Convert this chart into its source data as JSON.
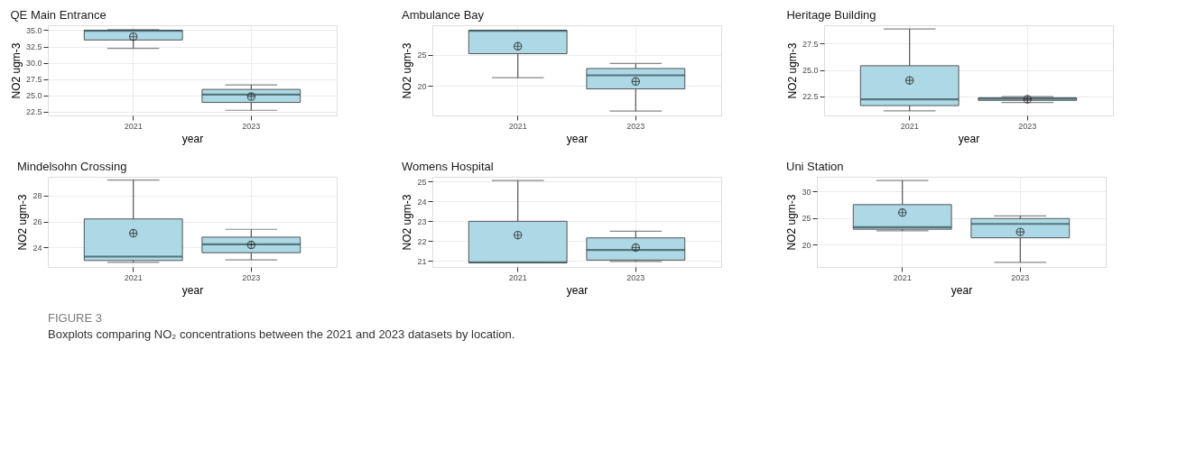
{
  "chart_data": [
    {
      "type": "box",
      "title": "QE Main Entrance",
      "xlabel": "year",
      "ylabel": "NO2 ugm-3",
      "categories": [
        "2021",
        "2023"
      ],
      "ylim": [
        21.9,
        35.76
      ],
      "yticks": [
        {
          "value": 22.5,
          "label": "22.5"
        },
        {
          "value": 25,
          "label": "25.0"
        },
        {
          "value": 27.5,
          "label": "27.5"
        },
        {
          "value": 30,
          "label": "30.0"
        },
        {
          "value": 32.5,
          "label": "32.5"
        },
        {
          "value": 35,
          "label": "35.0"
        }
      ],
      "grid": true,
      "marker": "circle",
      "series": [
        {
          "color": "#add8e6",
          "boxes": [
            {
              "low": 32.2,
              "q1": 33.5,
              "median": 34.9,
              "q3": 35.0,
              "high": 35.1,
              "mean": 34.0
            },
            {
              "low": 22.7,
              "q1": 23.9,
              "median": 25.1,
              "q3": 25.9,
              "high": 26.6,
              "mean": 24.8
            }
          ]
        }
      ]
    },
    {
      "type": "box",
      "title": "Ambulance Bay",
      "xlabel": "year",
      "ylabel": "NO2 ugm-3",
      "categories": [
        "2021",
        "2023"
      ],
      "ylim": [
        15.2,
        29.8
      ],
      "yticks": [
        20,
        25
      ],
      "grid": true,
      "marker": "circle",
      "series": [
        {
          "color": "#add8e6",
          "boxes": [
            {
              "low": 21.3,
              "q1": 25.2,
              "median": 28.9,
              "q3": 29.0,
              "high": 29.0,
              "mean": 26.4
            },
            {
              "low": 15.9,
              "q1": 19.5,
              "median": 21.7,
              "q3": 22.8,
              "high": 23.6,
              "mean": 20.7
            }
          ]
        }
      ]
    },
    {
      "type": "box",
      "title": "Heritage Building",
      "xlabel": "year",
      "ylabel": "NO2 ugm-3",
      "categories": [
        "2021",
        "2023"
      ],
      "ylim": [
        20.66,
        29.26
      ],
      "yticks": [
        {
          "value": 22.5,
          "label": "22.5"
        },
        {
          "value": 25,
          "label": "25.0"
        },
        {
          "value": 27.5,
          "label": "27.5"
        }
      ],
      "grid": true,
      "marker": "circle",
      "series": [
        {
          "color": "#add8e6",
          "boxes": [
            {
              "low": 21.1,
              "q1": 21.6,
              "median": 22.2,
              "q3": 25.4,
              "high": 28.9,
              "mean": 24.0
            },
            {
              "low": 21.9,
              "q1": 22.1,
              "median": 22.25,
              "q3": 22.35,
              "high": 22.45,
              "mean": 22.2
            }
          ]
        }
      ]
    },
    {
      "type": "box",
      "title": "Mindelsohn Crossing",
      "xlabel": "year",
      "ylabel": "NO2 ugm-3",
      "categories": [
        "2021",
        "2023"
      ],
      "ylim": [
        22.5,
        29.45
      ],
      "yticks": [
        24,
        26,
        28
      ],
      "grid": true,
      "marker": "circle",
      "series": [
        {
          "color": "#add8e6",
          "boxes": [
            {
              "low": 22.85,
              "q1": 23.0,
              "median": 23.3,
              "q3": 26.2,
              "high": 29.2,
              "mean": 25.1
            },
            {
              "low": 23.05,
              "q1": 23.6,
              "median": 24.25,
              "q3": 24.8,
              "high": 25.4,
              "mean": 24.2
            }
          ]
        }
      ]
    },
    {
      "type": "box",
      "title": "Womens Hospital",
      "xlabel": "year",
      "ylabel": "NO2 ugm-3",
      "categories": [
        "2021",
        "2023"
      ],
      "ylim": [
        20.69,
        25.25
      ],
      "yticks": [
        21,
        22,
        23,
        24,
        25
      ],
      "grid": true,
      "marker": "circle",
      "series": [
        {
          "color": "#add8e6",
          "boxes": [
            {
              "low": 20.9,
              "q1": 20.9,
              "median": 20.93,
              "q3": 23.0,
              "high": 25.06,
              "mean": 22.3
            },
            {
              "low": 20.97,
              "q1": 21.04,
              "median": 21.55,
              "q3": 22.16,
              "high": 22.5,
              "mean": 21.67
            }
          ]
        }
      ]
    },
    {
      "type": "box",
      "title": "Uni Station",
      "xlabel": "year",
      "ylabel": "NO2 ugm-3",
      "categories": [
        "2021",
        "2023"
      ],
      "ylim": [
        15.85,
        32.7
      ],
      "yticks": [
        20,
        25,
        30
      ],
      "grid": true,
      "marker": "circle",
      "series": [
        {
          "color": "#add8e6",
          "boxes": [
            {
              "low": 22.6,
              "q1": 22.9,
              "median": 23.3,
              "q3": 27.5,
              "high": 32.0,
              "mean": 26.0
            },
            {
              "low": 16.7,
              "q1": 21.3,
              "median": 23.9,
              "q3": 24.9,
              "high": 25.4,
              "mean": 22.4
            }
          ]
        }
      ],
      "annotations": [
        "FIGURE 3",
        "Boxplots comparing NO₂ concentrations between the 2021 and 2023 datasets by location."
      ]
    }
  ]
}
